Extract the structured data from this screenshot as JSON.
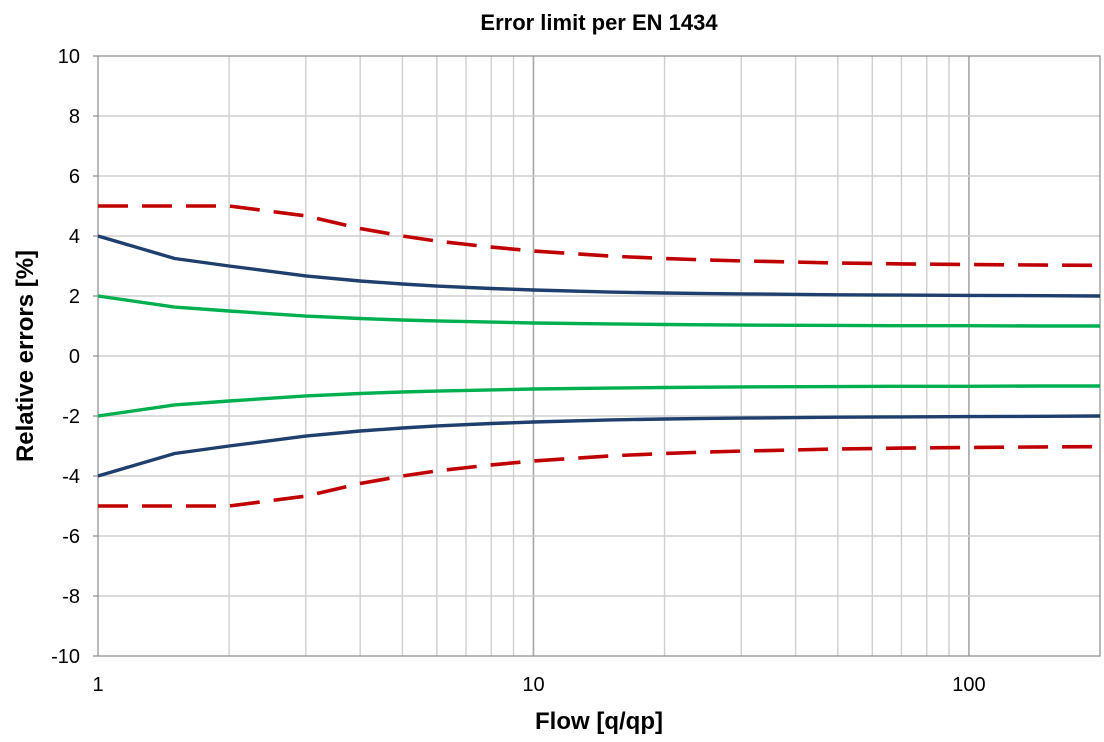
{
  "chart_data": {
    "type": "line",
    "title": "Error limit per EN 1434",
    "xlabel": "Flow [q/qp]",
    "ylabel": "Relative errors [%]",
    "x_scale": "log",
    "xlim": [
      1,
      200
    ],
    "ylim": [
      -10,
      10
    ],
    "x_ticks": [
      1,
      10,
      100
    ],
    "x_tick_labels": [
      "1",
      "10",
      "100"
    ],
    "y_ticks": [
      -10,
      -8,
      -6,
      -4,
      -2,
      0,
      2,
      4,
      6,
      8,
      10
    ],
    "y_tick_labels": [
      "-10",
      "-8",
      "-6",
      "-4",
      "-2",
      "0",
      "2",
      "4",
      "6",
      "8",
      "10"
    ],
    "grid": true,
    "legend": "none",
    "series": [
      {
        "color": "#c00000",
        "dash": "dashed",
        "x": [
          1,
          2,
          3,
          4,
          5,
          6,
          8,
          10,
          15,
          20,
          25,
          30,
          50,
          70,
          100,
          150,
          200
        ],
        "values": [
          5,
          5,
          4.67,
          4.25,
          4.0,
          3.83,
          3.63,
          3.5,
          3.33,
          3.25,
          3.2,
          3.17,
          3.1,
          3.07,
          3.05,
          3.03,
          3.02
        ]
      },
      {
        "color": "#1f3f6e",
        "dash": "solid",
        "x": [
          1,
          1.5,
          2,
          3,
          4,
          5,
          6,
          8,
          10,
          15,
          20,
          25,
          30,
          50,
          70,
          100,
          150,
          200
        ],
        "values": [
          4.0,
          3.25,
          3.0,
          2.67,
          2.5,
          2.4,
          2.33,
          2.25,
          2.2,
          2.13,
          2.1,
          2.08,
          2.07,
          2.04,
          2.03,
          2.02,
          2.01,
          2.0
        ]
      },
      {
        "color": "#00b050",
        "dash": "solid",
        "x": [
          1,
          1.5,
          2,
          3,
          4,
          5,
          6,
          8,
          10,
          15,
          20,
          25,
          30,
          50,
          70,
          100,
          150,
          200
        ],
        "values": [
          2.0,
          1.63,
          1.5,
          1.33,
          1.25,
          1.2,
          1.17,
          1.13,
          1.1,
          1.07,
          1.05,
          1.04,
          1.03,
          1.02,
          1.01,
          1.01,
          1.0,
          1.0
        ]
      },
      {
        "color": "#00b050",
        "dash": "solid",
        "x": [
          1,
          1.5,
          2,
          3,
          4,
          5,
          6,
          8,
          10,
          15,
          20,
          25,
          30,
          50,
          70,
          100,
          150,
          200
        ],
        "values": [
          -2.0,
          -1.63,
          -1.5,
          -1.33,
          -1.25,
          -1.2,
          -1.17,
          -1.13,
          -1.1,
          -1.07,
          -1.05,
          -1.04,
          -1.03,
          -1.02,
          -1.01,
          -1.01,
          -1.0,
          -1.0
        ]
      },
      {
        "color": "#1f3f6e",
        "dash": "solid",
        "x": [
          1,
          1.5,
          2,
          3,
          4,
          5,
          6,
          8,
          10,
          15,
          20,
          25,
          30,
          50,
          70,
          100,
          150,
          200
        ],
        "values": [
          -4.0,
          -3.25,
          -3.0,
          -2.67,
          -2.5,
          -2.4,
          -2.33,
          -2.25,
          -2.2,
          -2.13,
          -2.1,
          -2.08,
          -2.07,
          -2.04,
          -2.03,
          -2.02,
          -2.01,
          -2.0
        ]
      },
      {
        "color": "#c00000",
        "dash": "dashed",
        "x": [
          1,
          2,
          3,
          4,
          5,
          6,
          8,
          10,
          15,
          20,
          25,
          30,
          50,
          70,
          100,
          150,
          200
        ],
        "values": [
          -5,
          -5,
          -4.67,
          -4.25,
          -4.0,
          -3.83,
          -3.63,
          -3.5,
          -3.33,
          -3.25,
          -3.2,
          -3.17,
          -3.1,
          -3.07,
          -3.05,
          -3.03,
          -3.02
        ]
      }
    ]
  }
}
